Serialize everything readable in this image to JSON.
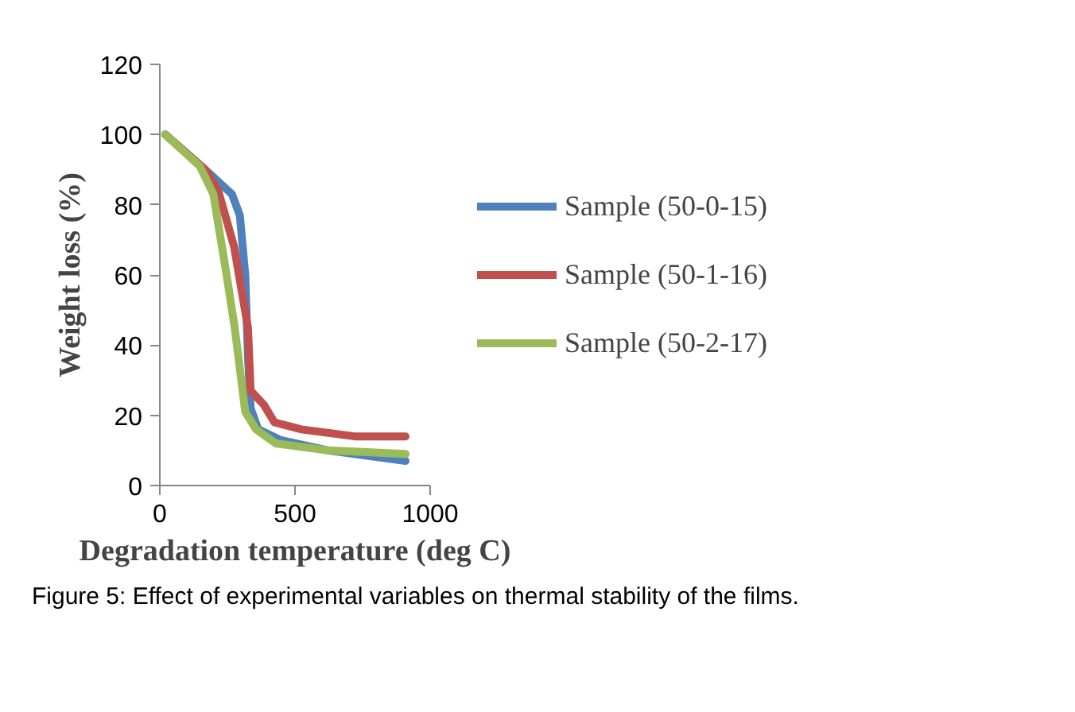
{
  "chart_data": {
    "type": "line",
    "xlabel": "Degradation temperature (deg C)",
    "ylabel": "Weight loss (%)",
    "xlim": [
      0,
      1000
    ],
    "xticks": [
      0,
      500,
      1000
    ],
    "ylim": [
      0,
      120
    ],
    "yticks": [
      0,
      20,
      40,
      60,
      80,
      100,
      120
    ],
    "grid": false,
    "legend": "right",
    "marker": "none",
    "line_style": "solid",
    "annotations": [
      "Figure 5: Effect of experimental variables on thermal stability of the films."
    ],
    "series": [
      {
        "name": "Sample (50-0-15)",
        "color": "#4f81bd",
        "x": [
          20,
          168,
          267,
          296,
          316,
          326,
          336,
          364,
          445,
          623,
          909
        ],
        "values": [
          100,
          90,
          83,
          77,
          60,
          37,
          22,
          16,
          13,
          10,
          7
        ]
      },
      {
        "name": "Sample (50-1-16)",
        "color": "#c0504d",
        "x": [
          20,
          168,
          216,
          275,
          326,
          336,
          385,
          424,
          524,
          721,
          909
        ],
        "values": [
          100,
          90,
          84,
          68,
          45,
          27,
          23,
          18,
          16,
          14,
          14
        ]
      },
      {
        "name": "Sample (50-2-17)",
        "color": "#9bbb59",
        "x": [
          20,
          148,
          198,
          247,
          277,
          316,
          356,
          429,
          623,
          909
        ],
        "values": [
          100,
          91,
          83,
          60,
          45,
          21,
          16,
          12,
          10,
          9
        ]
      }
    ]
  }
}
